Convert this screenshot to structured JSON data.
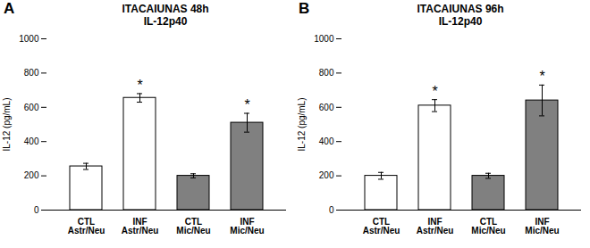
{
  "chart_data": [
    {
      "type": "bar",
      "title": "ITACAIUNAS 48h",
      "subtitle": "IL-12p40",
      "annotations": [
        "A"
      ],
      "categories": [
        "CTL\nAstr/Neu",
        "INF\nAstr/Neu",
        "CTL\nMic/Neu",
        "INF\nMic/Neu"
      ],
      "values": [
        255,
        655,
        200,
        510
      ],
      "errors": [
        18,
        25,
        12,
        55
      ],
      "significance": [
        null,
        "*",
        null,
        "*"
      ],
      "colors": [
        "white",
        "white",
        "#808080",
        "#808080"
      ],
      "ylabel": "IL-12 (pg/mL)",
      "ylim": [
        0,
        1000
      ],
      "yticks": [
        0,
        200,
        400,
        600,
        800,
        1000
      ],
      "grid": false
    },
    {
      "type": "bar",
      "title": "ITACAIUNAS 96h",
      "subtitle": "IL-12p40",
      "annotations": [
        "B"
      ],
      "categories": [
        "CTL\nAstr/Neu",
        "INF\nAstr/Neu",
        "CTL\nMic/Neu",
        "INF\nMic/Neu"
      ],
      "values": [
        200,
        610,
        200,
        640
      ],
      "errors": [
        20,
        35,
        15,
        90
      ],
      "significance": [
        null,
        "*",
        null,
        "*"
      ],
      "colors": [
        "white",
        "white",
        "#808080",
        "#808080"
      ],
      "ylabel": "IL-12 (pg/mL)",
      "ylim": [
        0,
        1000
      ],
      "yticks": [
        0,
        200,
        400,
        600,
        800,
        1000
      ],
      "grid": false
    }
  ]
}
